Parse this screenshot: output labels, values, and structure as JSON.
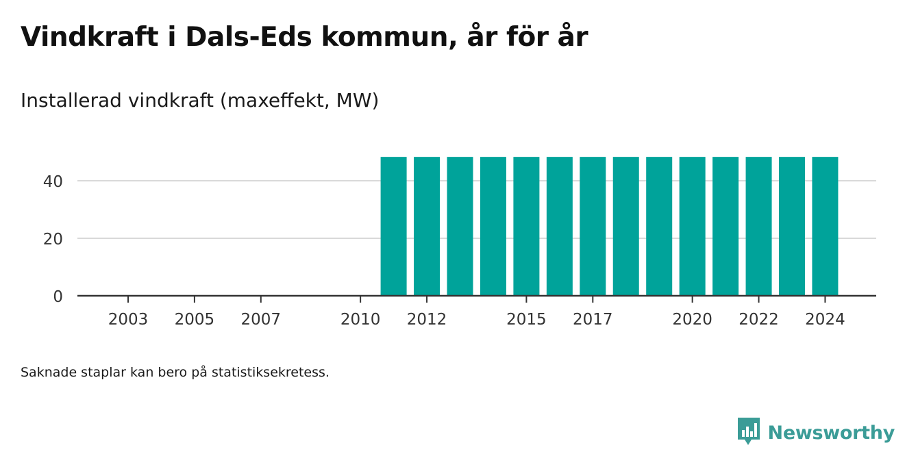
{
  "header": {
    "title": "Vindkraft i Dals-Eds kommun, år för år",
    "subtitle": "Installerad vindkraft (maxeffekt, MW)"
  },
  "footer": {
    "note": "Saknade staplar kan bero på statistiksekretess.",
    "brand": "Newsworthy",
    "brand_icon": "newsworthy-logo-icon"
  },
  "colors": {
    "bar": "#00a39a",
    "grid": "#d9d9d9",
    "axis": "#333333",
    "brand": "#3b9c97"
  },
  "chart_data": {
    "type": "bar",
    "title": "",
    "xlabel": "",
    "ylabel": "",
    "x": [
      2003,
      2004,
      2005,
      2006,
      2007,
      2008,
      2009,
      2010,
      2011,
      2012,
      2013,
      2014,
      2015,
      2016,
      2017,
      2018,
      2019,
      2020,
      2021,
      2022,
      2023,
      2024
    ],
    "values": [
      0,
      0,
      0,
      0,
      0,
      0,
      0,
      0,
      48.3,
      48.3,
      48.3,
      48.3,
      48.3,
      48.3,
      48.3,
      48.3,
      48.3,
      48.3,
      48.3,
      48.3,
      48.3,
      48.3
    ],
    "xtick_labels": [
      2003,
      2005,
      2007,
      2010,
      2012,
      2015,
      2017,
      2020,
      2022,
      2024
    ],
    "yticks": [
      0,
      20,
      40
    ],
    "ylim": [
      0,
      50
    ],
    "grid": true,
    "legend": "none"
  }
}
